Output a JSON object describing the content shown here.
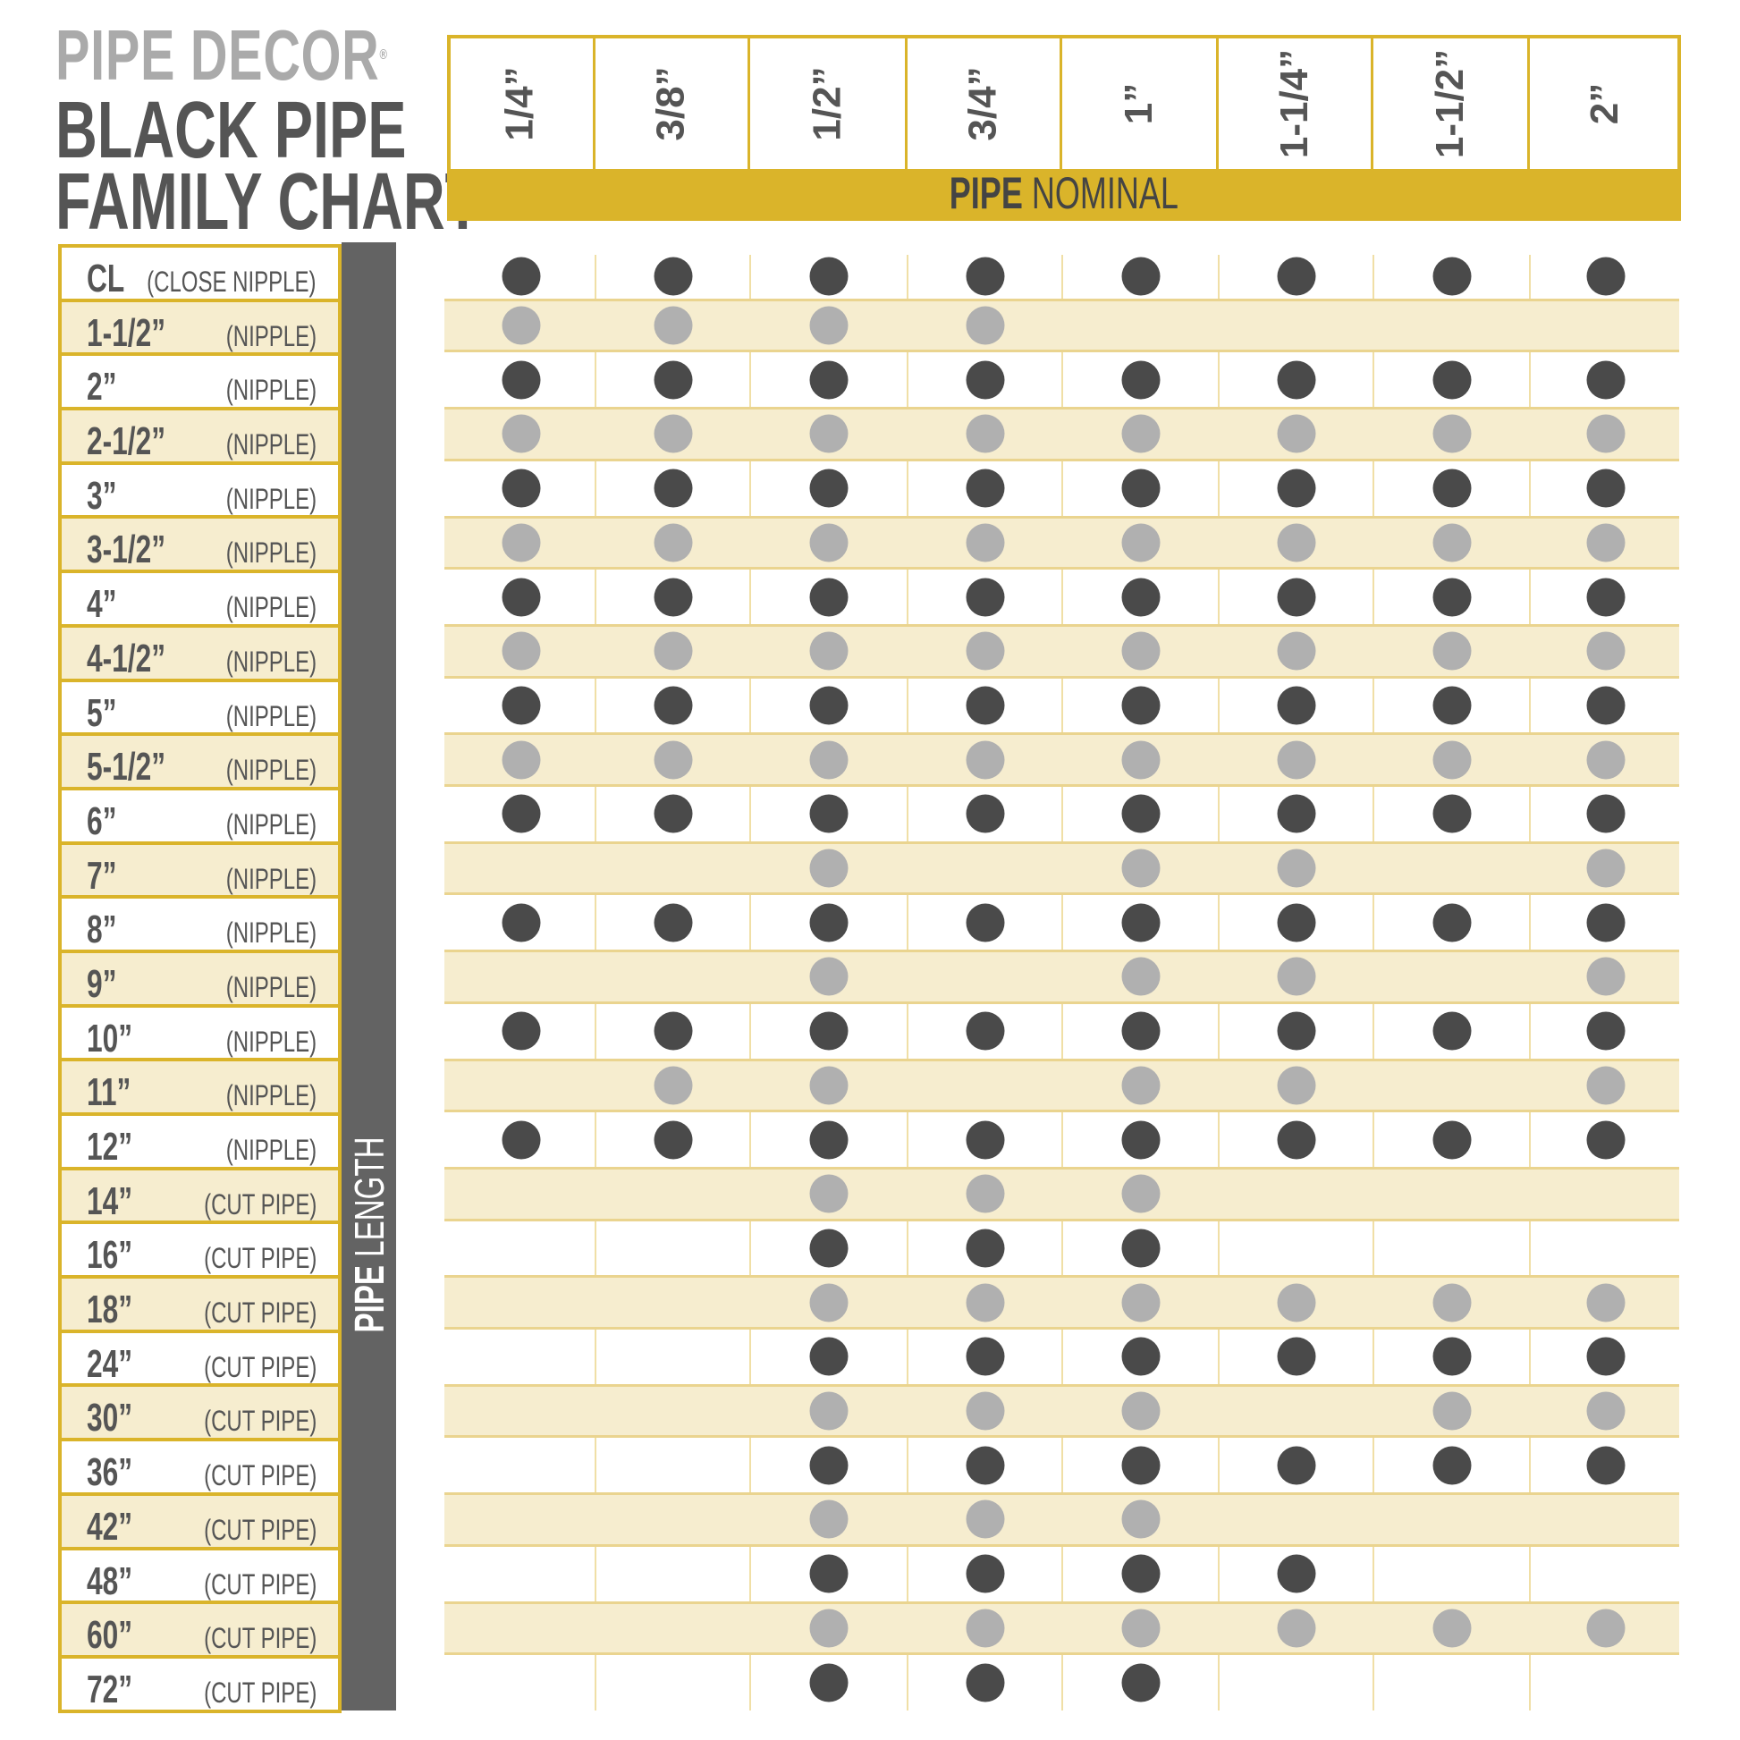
{
  "brand": "PIPE DECOR",
  "brand_mark": "®",
  "title_line1": "BLACK PIPE",
  "title_line2": "FAMILY CHART",
  "colors": {
    "gold": "#dab42a",
    "stripe": "#f6edcf",
    "dot_dark": "#4a4a4a",
    "dot_light": "#b0b0b0",
    "bar": "#636363"
  },
  "chart_data": {
    "type": "table",
    "x_axis_title_bold": "PIPE",
    "x_axis_title_rest": " NOMINAL",
    "y_axis_title_bold": "PIPE",
    "y_axis_title_rest": " LENGTH",
    "columns": [
      "1/4”",
      "3/8”",
      "1/2”",
      "3/4”",
      "1”",
      "1-1/4”",
      "1-1/2”",
      "2”"
    ],
    "rows": [
      {
        "length": "CL",
        "kind": "(CLOSE NIPPLE)",
        "available": [
          1,
          1,
          1,
          1,
          1,
          1,
          1,
          1
        ]
      },
      {
        "length": "1-1/2”",
        "kind": "(NIPPLE)",
        "available": [
          1,
          1,
          1,
          1,
          0,
          0,
          0,
          0
        ]
      },
      {
        "length": "2”",
        "kind": "(NIPPLE)",
        "available": [
          1,
          1,
          1,
          1,
          1,
          1,
          1,
          1
        ]
      },
      {
        "length": "2-1/2”",
        "kind": "(NIPPLE)",
        "available": [
          1,
          1,
          1,
          1,
          1,
          1,
          1,
          1
        ]
      },
      {
        "length": "3”",
        "kind": "(NIPPLE)",
        "available": [
          1,
          1,
          1,
          1,
          1,
          1,
          1,
          1
        ]
      },
      {
        "length": "3-1/2”",
        "kind": "(NIPPLE)",
        "available": [
          1,
          1,
          1,
          1,
          1,
          1,
          1,
          1
        ]
      },
      {
        "length": "4”",
        "kind": "(NIPPLE)",
        "available": [
          1,
          1,
          1,
          1,
          1,
          1,
          1,
          1
        ]
      },
      {
        "length": "4-1/2”",
        "kind": "(NIPPLE)",
        "available": [
          1,
          1,
          1,
          1,
          1,
          1,
          1,
          1
        ]
      },
      {
        "length": "5”",
        "kind": "(NIPPLE)",
        "available": [
          1,
          1,
          1,
          1,
          1,
          1,
          1,
          1
        ]
      },
      {
        "length": "5-1/2”",
        "kind": "(NIPPLE)",
        "available": [
          1,
          1,
          1,
          1,
          1,
          1,
          1,
          1
        ]
      },
      {
        "length": "6”",
        "kind": "(NIPPLE)",
        "available": [
          1,
          1,
          1,
          1,
          1,
          1,
          1,
          1
        ]
      },
      {
        "length": "7”",
        "kind": "(NIPPLE)",
        "available": [
          0,
          0,
          1,
          0,
          1,
          1,
          0,
          1
        ]
      },
      {
        "length": "8”",
        "kind": "(NIPPLE)",
        "available": [
          1,
          1,
          1,
          1,
          1,
          1,
          1,
          1
        ]
      },
      {
        "length": "9”",
        "kind": "(NIPPLE)",
        "available": [
          0,
          0,
          1,
          0,
          1,
          1,
          0,
          1
        ]
      },
      {
        "length": "10”",
        "kind": "(NIPPLE)",
        "available": [
          1,
          1,
          1,
          1,
          1,
          1,
          1,
          1
        ]
      },
      {
        "length": "11”",
        "kind": "(NIPPLE)",
        "available": [
          0,
          1,
          1,
          0,
          1,
          1,
          0,
          1
        ]
      },
      {
        "length": "12”",
        "kind": "(NIPPLE)",
        "available": [
          1,
          1,
          1,
          1,
          1,
          1,
          1,
          1
        ]
      },
      {
        "length": "14”",
        "kind": "(CUT PIPE)",
        "available": [
          0,
          0,
          1,
          1,
          1,
          0,
          0,
          0
        ]
      },
      {
        "length": "16”",
        "kind": "(CUT PIPE)",
        "available": [
          0,
          0,
          1,
          1,
          1,
          0,
          0,
          0
        ]
      },
      {
        "length": "18”",
        "kind": "(CUT PIPE)",
        "available": [
          0,
          0,
          1,
          1,
          1,
          1,
          1,
          1
        ]
      },
      {
        "length": "24”",
        "kind": "(CUT PIPE)",
        "available": [
          0,
          0,
          1,
          1,
          1,
          1,
          1,
          1
        ]
      },
      {
        "length": "30”",
        "kind": "(CUT PIPE)",
        "available": [
          0,
          0,
          1,
          1,
          1,
          0,
          1,
          1
        ]
      },
      {
        "length": "36”",
        "kind": "(CUT PIPE)",
        "available": [
          0,
          0,
          1,
          1,
          1,
          1,
          1,
          1
        ]
      },
      {
        "length": "42”",
        "kind": "(CUT PIPE)",
        "available": [
          0,
          0,
          1,
          1,
          1,
          0,
          0,
          0
        ]
      },
      {
        "length": "48”",
        "kind": "(CUT PIPE)",
        "available": [
          0,
          0,
          1,
          1,
          1,
          1,
          0,
          0
        ]
      },
      {
        "length": "60”",
        "kind": "(CUT PIPE)",
        "available": [
          0,
          0,
          1,
          1,
          1,
          1,
          1,
          1
        ]
      },
      {
        "length": "72”",
        "kind": "(CUT PIPE)",
        "available": [
          0,
          0,
          1,
          1,
          1,
          0,
          0,
          0
        ]
      }
    ]
  }
}
